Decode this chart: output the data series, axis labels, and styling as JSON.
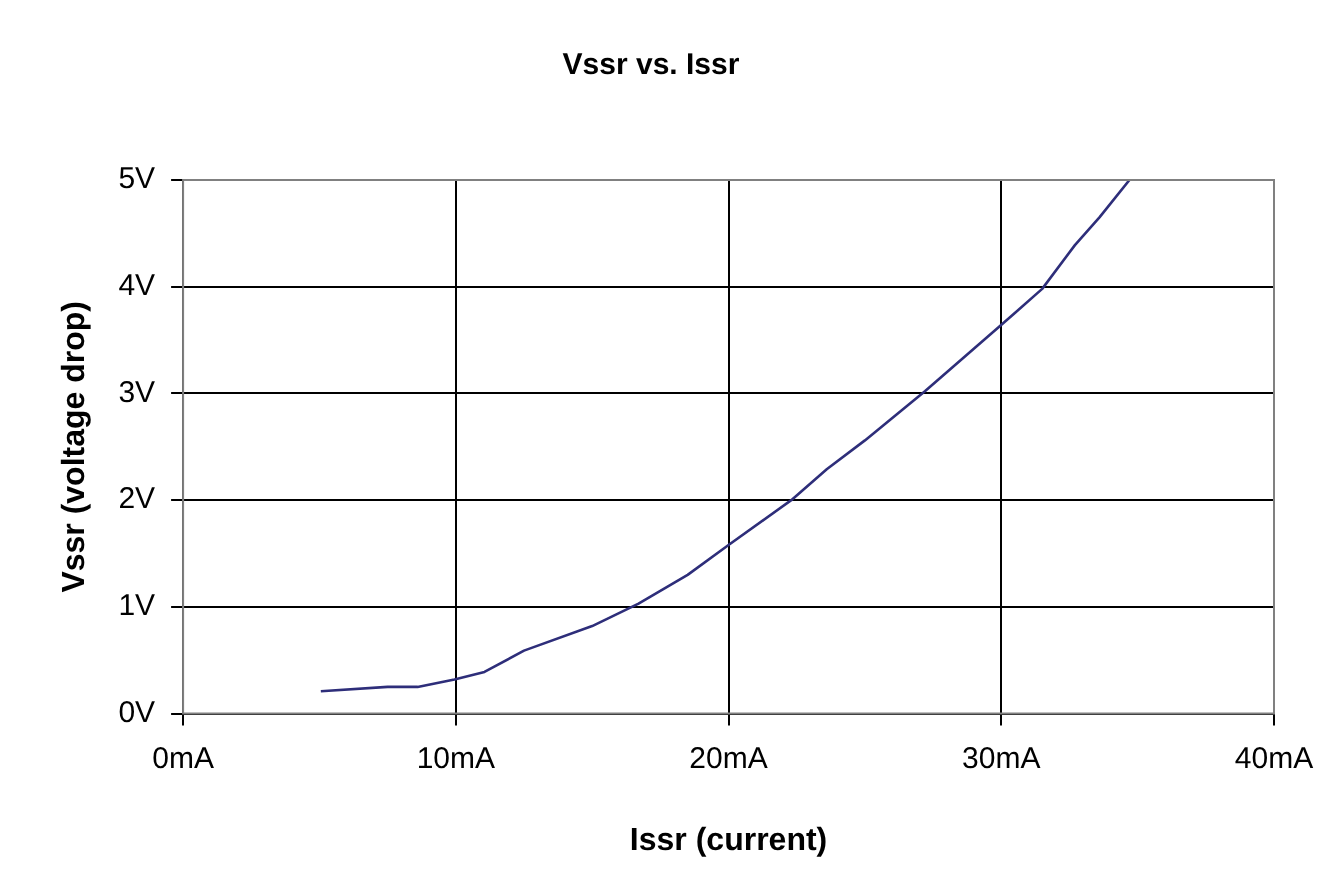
{
  "chart_data": {
    "type": "line",
    "title": "Vssr vs. Issr",
    "xlabel": "Issr (current)",
    "ylabel": "Vssr (voltage drop)",
    "xlim": [
      0,
      40
    ],
    "xticks": [
      {
        "value": 0,
        "label": "0mA"
      },
      {
        "value": 10,
        "label": "10mA"
      },
      {
        "value": 20,
        "label": "20mA"
      },
      {
        "value": 30,
        "label": "30mA"
      },
      {
        "value": 40,
        "label": "40mA"
      }
    ],
    "ylim": [
      0,
      5
    ],
    "yticks": [
      {
        "value": 0,
        "label": "0V"
      },
      {
        "value": 1,
        "label": "1V"
      },
      {
        "value": 2,
        "label": "2V"
      },
      {
        "value": 3,
        "label": "3V"
      },
      {
        "value": 4,
        "label": "4V"
      },
      {
        "value": 5,
        "label": "5V"
      }
    ],
    "grid": true,
    "marker": "none",
    "line_style": "solid",
    "series": [
      {
        "color": "#2e2e7a",
        "x": [
          5.05,
          7.5,
          8.6,
          9.95,
          11.05,
          12.5,
          15,
          16.7,
          18.5,
          20,
          22.3,
          23.6,
          25,
          27.2,
          29.9,
          31.5,
          32.7,
          33.6,
          34.7
        ],
        "values": [
          0.21,
          0.25,
          0.25,
          0.32,
          0.39,
          0.59,
          0.82,
          1.03,
          1.3,
          1.58,
          2.0,
          2.29,
          2.56,
          3.02,
          3.62,
          3.98,
          4.39,
          4.65,
          5.0
        ]
      }
    ]
  }
}
